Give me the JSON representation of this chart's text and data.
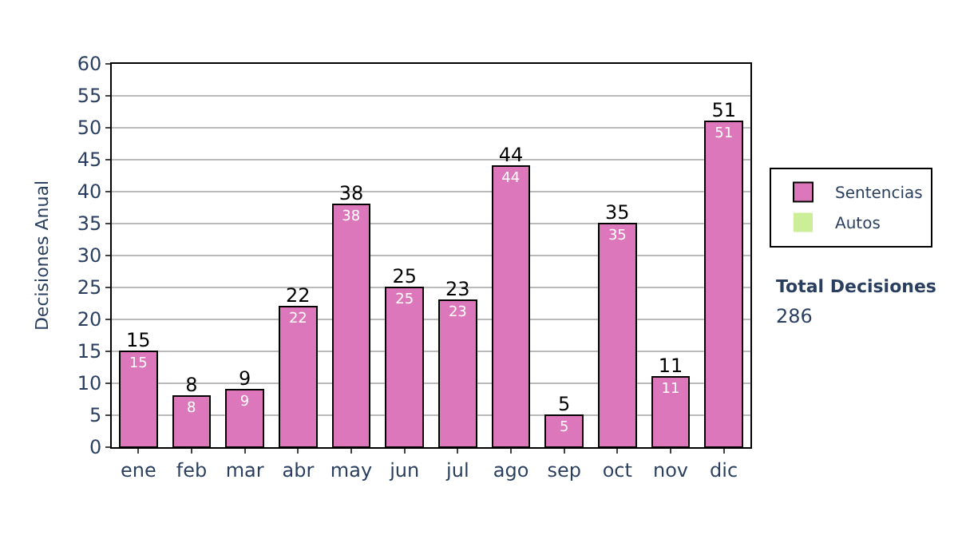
{
  "chart_data": {
    "type": "bar",
    "stacked": true,
    "ylabel": "Decisiones Anual",
    "categories": [
      "ene",
      "feb",
      "mar",
      "abr",
      "may",
      "jun",
      "jul",
      "ago",
      "sep",
      "oct",
      "nov",
      "dic"
    ],
    "series": [
      {
        "name": "Sentencias",
        "color": "#dd77bb",
        "values": [
          15,
          8,
          9,
          22,
          38,
          25,
          23,
          44,
          5,
          35,
          11,
          51
        ],
        "value_labels": [
          "15",
          "8",
          "9",
          "22",
          "38",
          "25",
          "23",
          "44",
          "5",
          "35",
          "11",
          "51"
        ]
      },
      {
        "name": "Autos",
        "color": "#ccee99",
        "values": [
          0,
          0,
          0,
          0,
          0,
          0,
          0,
          0,
          0,
          0,
          0,
          0
        ]
      }
    ],
    "totals": [
      "15",
      "8",
      "9",
      "22",
      "38",
      "25",
      "23",
      "44",
      "5",
      "35",
      "11",
      "51"
    ],
    "ylim": [
      0,
      60
    ],
    "yticks": [
      0,
      5,
      10,
      15,
      20,
      25,
      30,
      35,
      40,
      45,
      50,
      55,
      60
    ],
    "grid": "y",
    "legend": "right",
    "annotations": [
      "Total Decisiones",
      "286"
    ]
  }
}
